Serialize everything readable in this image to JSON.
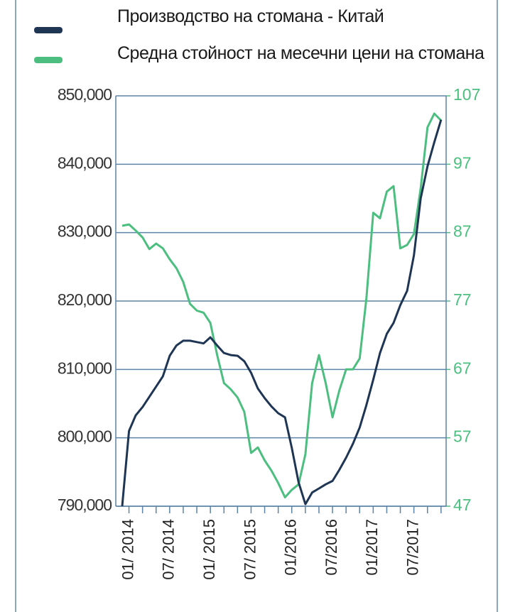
{
  "chart_data": {
    "type": "line",
    "categories": [
      null,
      "01/ 2014",
      null,
      null,
      null,
      null,
      null,
      "07/ 2014",
      null,
      null,
      null,
      null,
      null,
      "01/ 2015",
      null,
      null,
      null,
      null,
      null,
      "07/ 2015",
      null,
      null,
      null,
      null,
      null,
      "01/2016",
      null,
      null,
      null,
      null,
      null,
      "07/2016",
      null,
      null,
      null,
      null,
      null,
      "01/2017",
      null,
      null,
      null,
      null,
      null,
      "07/2017",
      null,
      null,
      null,
      null
    ],
    "series": [
      {
        "name": "Производство на стомана - Китай",
        "color": "#1f3554",
        "axis": "y",
        "values": [
          790000,
          801000,
          803300,
          804500,
          806000,
          807500,
          809000,
          812000,
          813500,
          814200,
          814200,
          814000,
          813800,
          814700,
          813500,
          812400,
          812100,
          812000,
          811200,
          809500,
          807200,
          805800,
          804600,
          803600,
          803000,
          798500,
          793500,
          790300,
          792000,
          792600,
          793200,
          793700,
          795300,
          797100,
          799100,
          801500,
          804800,
          808500,
          812400,
          815200,
          816800,
          819400,
          821500,
          826700,
          835000,
          839700,
          843200,
          846500
        ]
      },
      {
        "name": "Средна стойност на месечни цени на стомана",
        "color": "#4cbf80",
        "axis": "y2",
        "values": [
          88.0,
          88.2,
          87.3,
          86.3,
          84.6,
          85.4,
          84.7,
          83.1,
          81.8,
          79.8,
          76.6,
          75.6,
          75.3,
          73.8,
          69.1,
          65.0,
          64.1,
          62.9,
          60.8,
          54.8,
          55.6,
          53.7,
          52.2,
          50.4,
          48.3,
          49.4,
          50.2,
          54.6,
          65.0,
          69.1,
          65.0,
          60.0,
          63.9,
          67.0,
          67.0,
          68.6,
          77.4,
          89.9,
          89.1,
          93.0,
          93.8,
          84.7,
          85.2,
          86.8,
          93.5,
          102.4,
          104.4,
          103.4
        ]
      }
    ],
    "ylim": [
      790000,
      850000
    ],
    "yticks": [
      {
        "value": 790000,
        "label": "790,000"
      },
      {
        "value": 800000,
        "label": "800,000"
      },
      {
        "value": 810000,
        "label": "810,000"
      },
      {
        "value": 820000,
        "label": "820,000"
      },
      {
        "value": 830000,
        "label": "830,000"
      },
      {
        "value": 840000,
        "label": "840,000"
      },
      {
        "value": 850000,
        "label": "850,000"
      }
    ],
    "y2lim": [
      47,
      107
    ],
    "y2ticks": [
      47,
      57,
      67,
      77,
      87,
      97,
      107
    ],
    "grid": true
  }
}
